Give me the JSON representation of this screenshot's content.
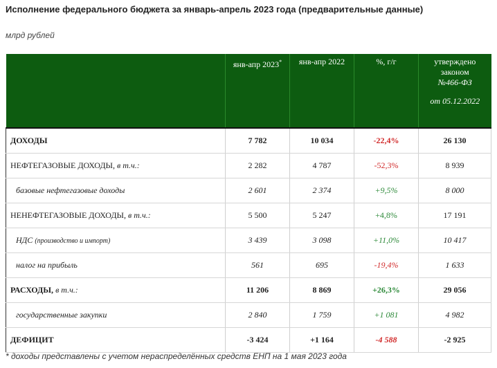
{
  "title": "Исполнение федерального бюджета за январь-апрель 2023 года (предварительные данные)",
  "units": "млрд рублей",
  "header": {
    "col1": "янв-апр 2023",
    "col1_mark": "*",
    "col2": "янв-апр 2022",
    "col3": "%, г/г",
    "col4_line1": "утверждено законом",
    "col4_line2": "№466-ФЗ",
    "col4_line3": "от 05.12.2022"
  },
  "rows": [
    {
      "label": "ДОХОДЫ",
      "suffix": "",
      "v2023": "7 782",
      "v2022": "10 034",
      "pct": "-22,4%",
      "law": "26 130"
    },
    {
      "label": "НЕФТЕГАЗОВЫЕ ДОХОДЫ,",
      "suffix": "в т.ч.:",
      "v2023": "2 282",
      "v2022": "4 787",
      "pct": "-52,3%",
      "law": "8 939"
    },
    {
      "label": "базовые нефтегазовые доходы",
      "suffix": "",
      "v2023": "2 601",
      "v2022": "2 374",
      "pct": "+9,5%",
      "law": "8 000"
    },
    {
      "label": "НЕНЕФТЕГАЗОВЫЕ ДОХОДЫ,",
      "suffix": "в т.ч.:",
      "v2023": "5 500",
      "v2022": "5 247",
      "pct": "+4,8%",
      "law": "17 191"
    },
    {
      "label": "НДС",
      "suffix": "(производство и импорт)",
      "v2023": "3 439",
      "v2022": "3 098",
      "pct": "+11,0%",
      "law": "10 417"
    },
    {
      "label": "налог на прибыль",
      "suffix": "",
      "v2023": "561",
      "v2022": "695",
      "pct": "-19,4%",
      "law": "1 633"
    },
    {
      "label": "РАСХОДЫ,",
      "suffix": "в т.ч.:",
      "v2023": "11 206",
      "v2022": "8 869",
      "pct": "+26,3%",
      "law": "29 056"
    },
    {
      "label": "государственные закупки",
      "suffix": "",
      "v2023": "2 840",
      "v2022": "1 759",
      "pct": "+1 081",
      "law": "4 982"
    },
    {
      "label": "ДЕФИЦИТ",
      "suffix": "",
      "v2023": "-3 424",
      "v2022": "+1 164",
      "pct": "-4 588",
      "law": "-2 925"
    }
  ],
  "colors": {
    "header_bg": "#0d5c10",
    "negative": "#d12a2a",
    "positive": "#2e8a3a"
  },
  "footnote": "* доходы представлены с учетом нераспределённых средств ЕНП на 1 мая 2023 года"
}
